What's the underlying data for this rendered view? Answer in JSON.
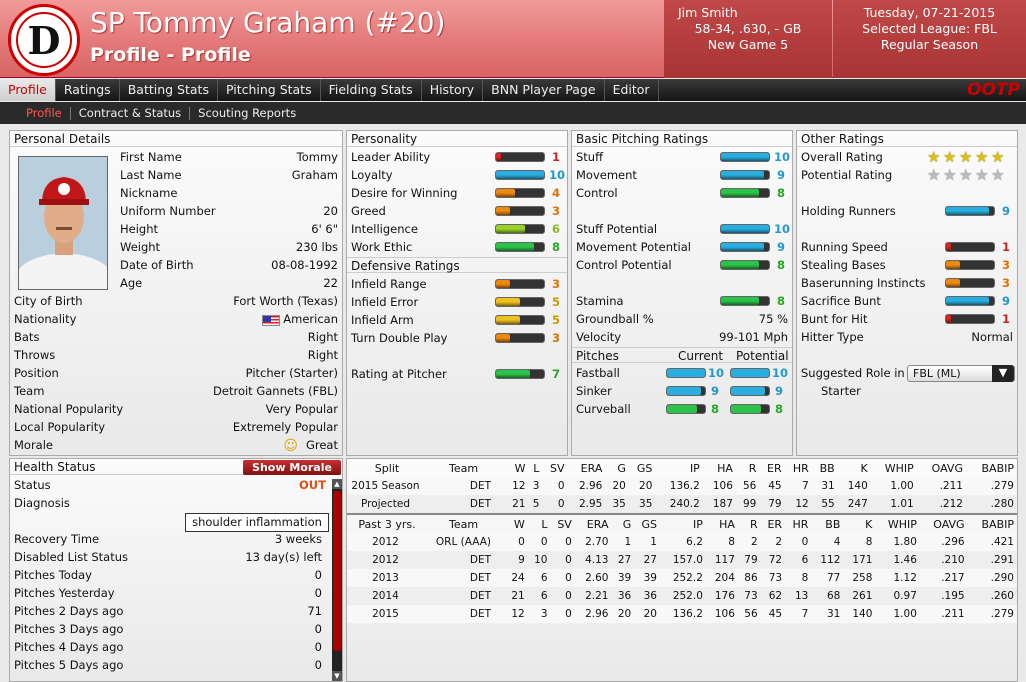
{
  "header": {
    "title": "SP Tommy Graham (#20)",
    "subtitle": "Profile - Profile",
    "manager": {
      "name": "Jim Smith",
      "record": "58-34, .630, - GB",
      "game": "New Game 5"
    },
    "date": "Tuesday, 07-21-2015",
    "league": "Selected League: FBL",
    "season": "Regular Season",
    "logo_letter": "D"
  },
  "nav": {
    "tabs": [
      "Profile",
      "Ratings",
      "Batting Stats",
      "Pitching Stats",
      "Fielding Stats",
      "History",
      "BNN Player Page",
      "Editor"
    ],
    "active": 0,
    "brand": "OOTP",
    "subtabs": [
      "Profile",
      "Contract & Status",
      "Scouting Reports"
    ]
  },
  "personal": {
    "heading": "Personal Details",
    "rows": [
      {
        "label": "First Name",
        "value": "Tommy"
      },
      {
        "label": "Last Name",
        "value": "Graham"
      },
      {
        "label": "Nickname",
        "value": ""
      },
      {
        "label": "Uniform Number",
        "value": "20"
      },
      {
        "label": "Height",
        "value": "6' 6\""
      },
      {
        "label": "Weight",
        "value": "230 lbs"
      },
      {
        "label": "Date of Birth",
        "value": "08-08-1992"
      },
      {
        "label": "Age",
        "value": "22"
      }
    ],
    "rows2": [
      {
        "label": "City of Birth",
        "value": "Fort Worth (Texas)"
      },
      {
        "label": "Nationality",
        "value": "American"
      },
      {
        "label": "Bats",
        "value": "Right"
      },
      {
        "label": "Throws",
        "value": "Right"
      },
      {
        "label": "Position",
        "value": "Pitcher (Starter)"
      },
      {
        "label": "Team",
        "value": "Detroit Gannets (FBL)"
      },
      {
        "label": "National Popularity",
        "value": "Very Popular"
      },
      {
        "label": "Local Popularity",
        "value": "Extremely Popular"
      },
      {
        "label": "Morale",
        "value": "Great"
      }
    ]
  },
  "personality": {
    "heading": "Personality",
    "rows": [
      {
        "label": "Leader Ability",
        "value": 1
      },
      {
        "label": "Loyalty",
        "value": 10
      },
      {
        "label": "Desire for Winning",
        "value": 4
      },
      {
        "label": "Greed",
        "value": 3
      },
      {
        "label": "Intelligence",
        "value": 6
      },
      {
        "label": "Work Ethic",
        "value": 8
      }
    ]
  },
  "defensive": {
    "heading": "Defensive Ratings",
    "rows": [
      {
        "label": "Infield Range",
        "value": 3
      },
      {
        "label": "Infield Error",
        "value": 5
      },
      {
        "label": "Infield Arm",
        "value": 5
      },
      {
        "label": "Turn Double Play",
        "value": 3
      }
    ],
    "pitcher_label": "Rating at Pitcher",
    "pitcher_value": 7
  },
  "basic": {
    "heading": "Basic Pitching Ratings",
    "rows": [
      {
        "label": "Stuff",
        "value": 10
      },
      {
        "label": "Movement",
        "value": 9
      },
      {
        "label": "Control",
        "value": 8
      }
    ],
    "potential": [
      {
        "label": "Stuff Potential",
        "value": 10
      },
      {
        "label": "Movement Potential",
        "value": 9
      },
      {
        "label": "Control Potential",
        "value": 8
      }
    ],
    "stamina_label": "Stamina",
    "stamina": 8,
    "groundball_label": "Groundball %",
    "groundball": "75 %",
    "velocity_label": "Velocity",
    "velocity": "99-101 Mph"
  },
  "pitches": {
    "heading": "Pitches",
    "current_label": "Current",
    "potential_label": "Potential",
    "rows": [
      {
        "label": "Fastball",
        "current": 10,
        "potential": 10
      },
      {
        "label": "Sinker",
        "current": 9,
        "potential": 9
      },
      {
        "label": "Curveball",
        "current": 8,
        "potential": 8
      }
    ]
  },
  "other": {
    "heading": "Other Ratings",
    "overall_label": "Overall Rating",
    "overall_stars": 5,
    "potential_label": "Potential Rating",
    "potential_stars": 0,
    "rows": [
      {
        "label": "Holding Runners",
        "value": 9
      }
    ],
    "rows2": [
      {
        "label": "Running Speed",
        "value": 1
      },
      {
        "label": "Stealing Bases",
        "value": 3
      },
      {
        "label": "Baserunning Instincts",
        "value": 3
      },
      {
        "label": "Sacrifice Bunt",
        "value": 9
      },
      {
        "label": "Bunt for Hit",
        "value": 1
      }
    ],
    "hitter_label": "Hitter Type",
    "hitter": "Normal",
    "role_label": "Suggested Role in",
    "role_select": "FBL (ML)",
    "role": "Starter"
  },
  "health": {
    "heading": "Health Status",
    "morale_btn": "Show Morale",
    "status_label": "Status",
    "status": "OUT",
    "diagnosis_label": "Diagnosis",
    "diagnosis": "shoulder inflammation",
    "rows": [
      {
        "label": "Recovery Time",
        "value": "3 weeks"
      },
      {
        "label": "Disabled List Status",
        "value": "13 day(s) left"
      },
      {
        "label": "Pitches Today",
        "value": "0"
      },
      {
        "label": "Pitches Yesterday",
        "value": "0"
      },
      {
        "label": "Pitches 2 Days ago",
        "value": "71"
      },
      {
        "label": "Pitches 3 Days ago",
        "value": "0"
      },
      {
        "label": "Pitches 4 Days ago",
        "value": "0"
      },
      {
        "label": "Pitches 5 Days ago",
        "value": "0"
      }
    ]
  },
  "stats": {
    "cols": [
      "W",
      "L",
      "SV",
      "ERA",
      "G",
      "GS",
      "IP",
      "HA",
      "R",
      "ER",
      "HR",
      "BB",
      "K",
      "WHIP",
      "OAVG",
      "BABIP"
    ],
    "split_label": "Split",
    "team_label": "Team",
    "season": [
      [
        "2015 Season",
        "DET",
        "12",
        "3",
        "0",
        "2.96",
        "20",
        "20",
        "136.2",
        "106",
        "56",
        "45",
        "7",
        "31",
        "140",
        "1.00",
        ".211",
        ".279"
      ],
      [
        "Projected",
        "DET",
        "21",
        "5",
        "0",
        "2.95",
        "35",
        "35",
        "240.2",
        "187",
        "99",
        "79",
        "12",
        "55",
        "247",
        "1.01",
        ".212",
        ".280"
      ]
    ],
    "past_label": "Past 3 yrs.",
    "past": [
      [
        "2012",
        "ORL (AAA)",
        "0",
        "0",
        "0",
        "2.70",
        "1",
        "1",
        "6.2",
        "8",
        "2",
        "2",
        "0",
        "4",
        "8",
        "1.80",
        ".296",
        ".421"
      ],
      [
        "2012",
        "DET",
        "9",
        "10",
        "0",
        "4.13",
        "27",
        "27",
        "157.0",
        "117",
        "79",
        "72",
        "6",
        "112",
        "171",
        "1.46",
        ".210",
        ".291"
      ],
      [
        "2013",
        "DET",
        "24",
        "6",
        "0",
        "2.60",
        "39",
        "39",
        "252.2",
        "204",
        "86",
        "73",
        "8",
        "77",
        "258",
        "1.12",
        ".217",
        ".290"
      ],
      [
        "2014",
        "DET",
        "21",
        "6",
        "0",
        "2.21",
        "36",
        "36",
        "252.0",
        "176",
        "73",
        "62",
        "13",
        "68",
        "261",
        "0.97",
        ".195",
        ".260"
      ],
      [
        "2015",
        "DET",
        "12",
        "3",
        "0",
        "2.96",
        "20",
        "20",
        "136.2",
        "106",
        "56",
        "45",
        "7",
        "31",
        "140",
        "1.00",
        ".211",
        ".279"
      ]
    ]
  }
}
